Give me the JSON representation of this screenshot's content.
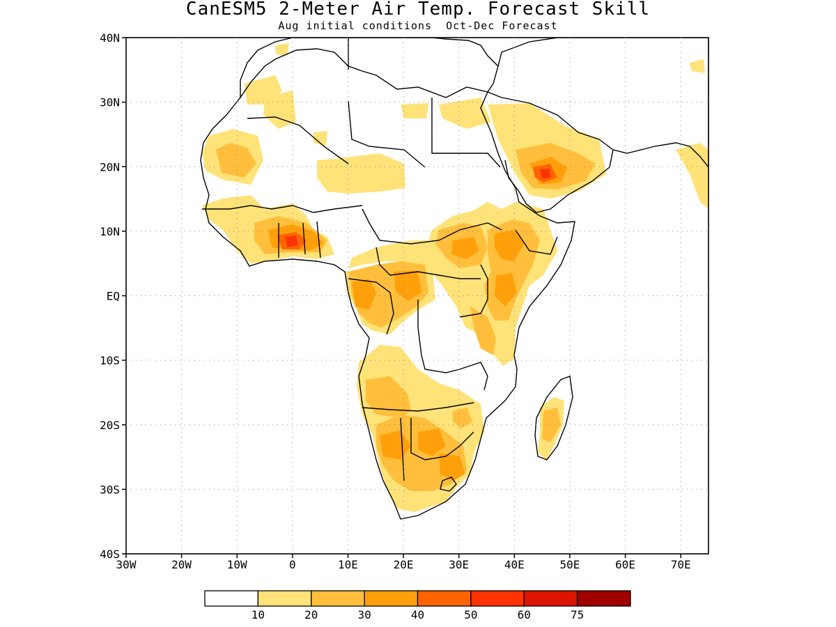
{
  "title": "CanESM5 2-Meter Air Temp. Forecast Skill",
  "subtitle": "Aug initial conditions  Oct-Dec Forecast",
  "map": {
    "lon_range": [
      -30,
      75
    ],
    "lat_range": [
      -40,
      40
    ],
    "lat_labels": [
      {
        "lat": 40,
        "label": "40N"
      },
      {
        "lat": 30,
        "label": "30N"
      },
      {
        "lat": 20,
        "label": "20N"
      },
      {
        "lat": 10,
        "label": "10N"
      },
      {
        "lat": 0,
        "label": "EQ"
      },
      {
        "lat": -10,
        "label": "10S"
      },
      {
        "lat": -20,
        "label": "20S"
      },
      {
        "lat": -30,
        "label": "30S"
      },
      {
        "lat": -40,
        "label": "40S"
      }
    ],
    "lon_labels": [
      {
        "lon": -30,
        "label": "30W"
      },
      {
        "lon": -20,
        "label": "20W"
      },
      {
        "lon": -10,
        "label": "10W"
      },
      {
        "lon": 0,
        "label": "0"
      },
      {
        "lon": 10,
        "label": "10E"
      },
      {
        "lon": 20,
        "label": "20E"
      },
      {
        "lon": 30,
        "label": "30E"
      },
      {
        "lon": 40,
        "label": "40E"
      },
      {
        "lon": 50,
        "label": "50E"
      },
      {
        "lon": 60,
        "label": "60E"
      },
      {
        "lon": 70,
        "label": "70E"
      }
    ],
    "grid": "dotted"
  },
  "colorbar": {
    "colors": [
      "#ffffff",
      "#ffe278",
      "#ffbf3c",
      "#ffa00a",
      "#ff6400",
      "#ff3200",
      "#dc1400",
      "#a00000"
    ],
    "labels": [
      "10",
      "20",
      "30",
      "40",
      "50",
      "60",
      "75"
    ]
  }
}
